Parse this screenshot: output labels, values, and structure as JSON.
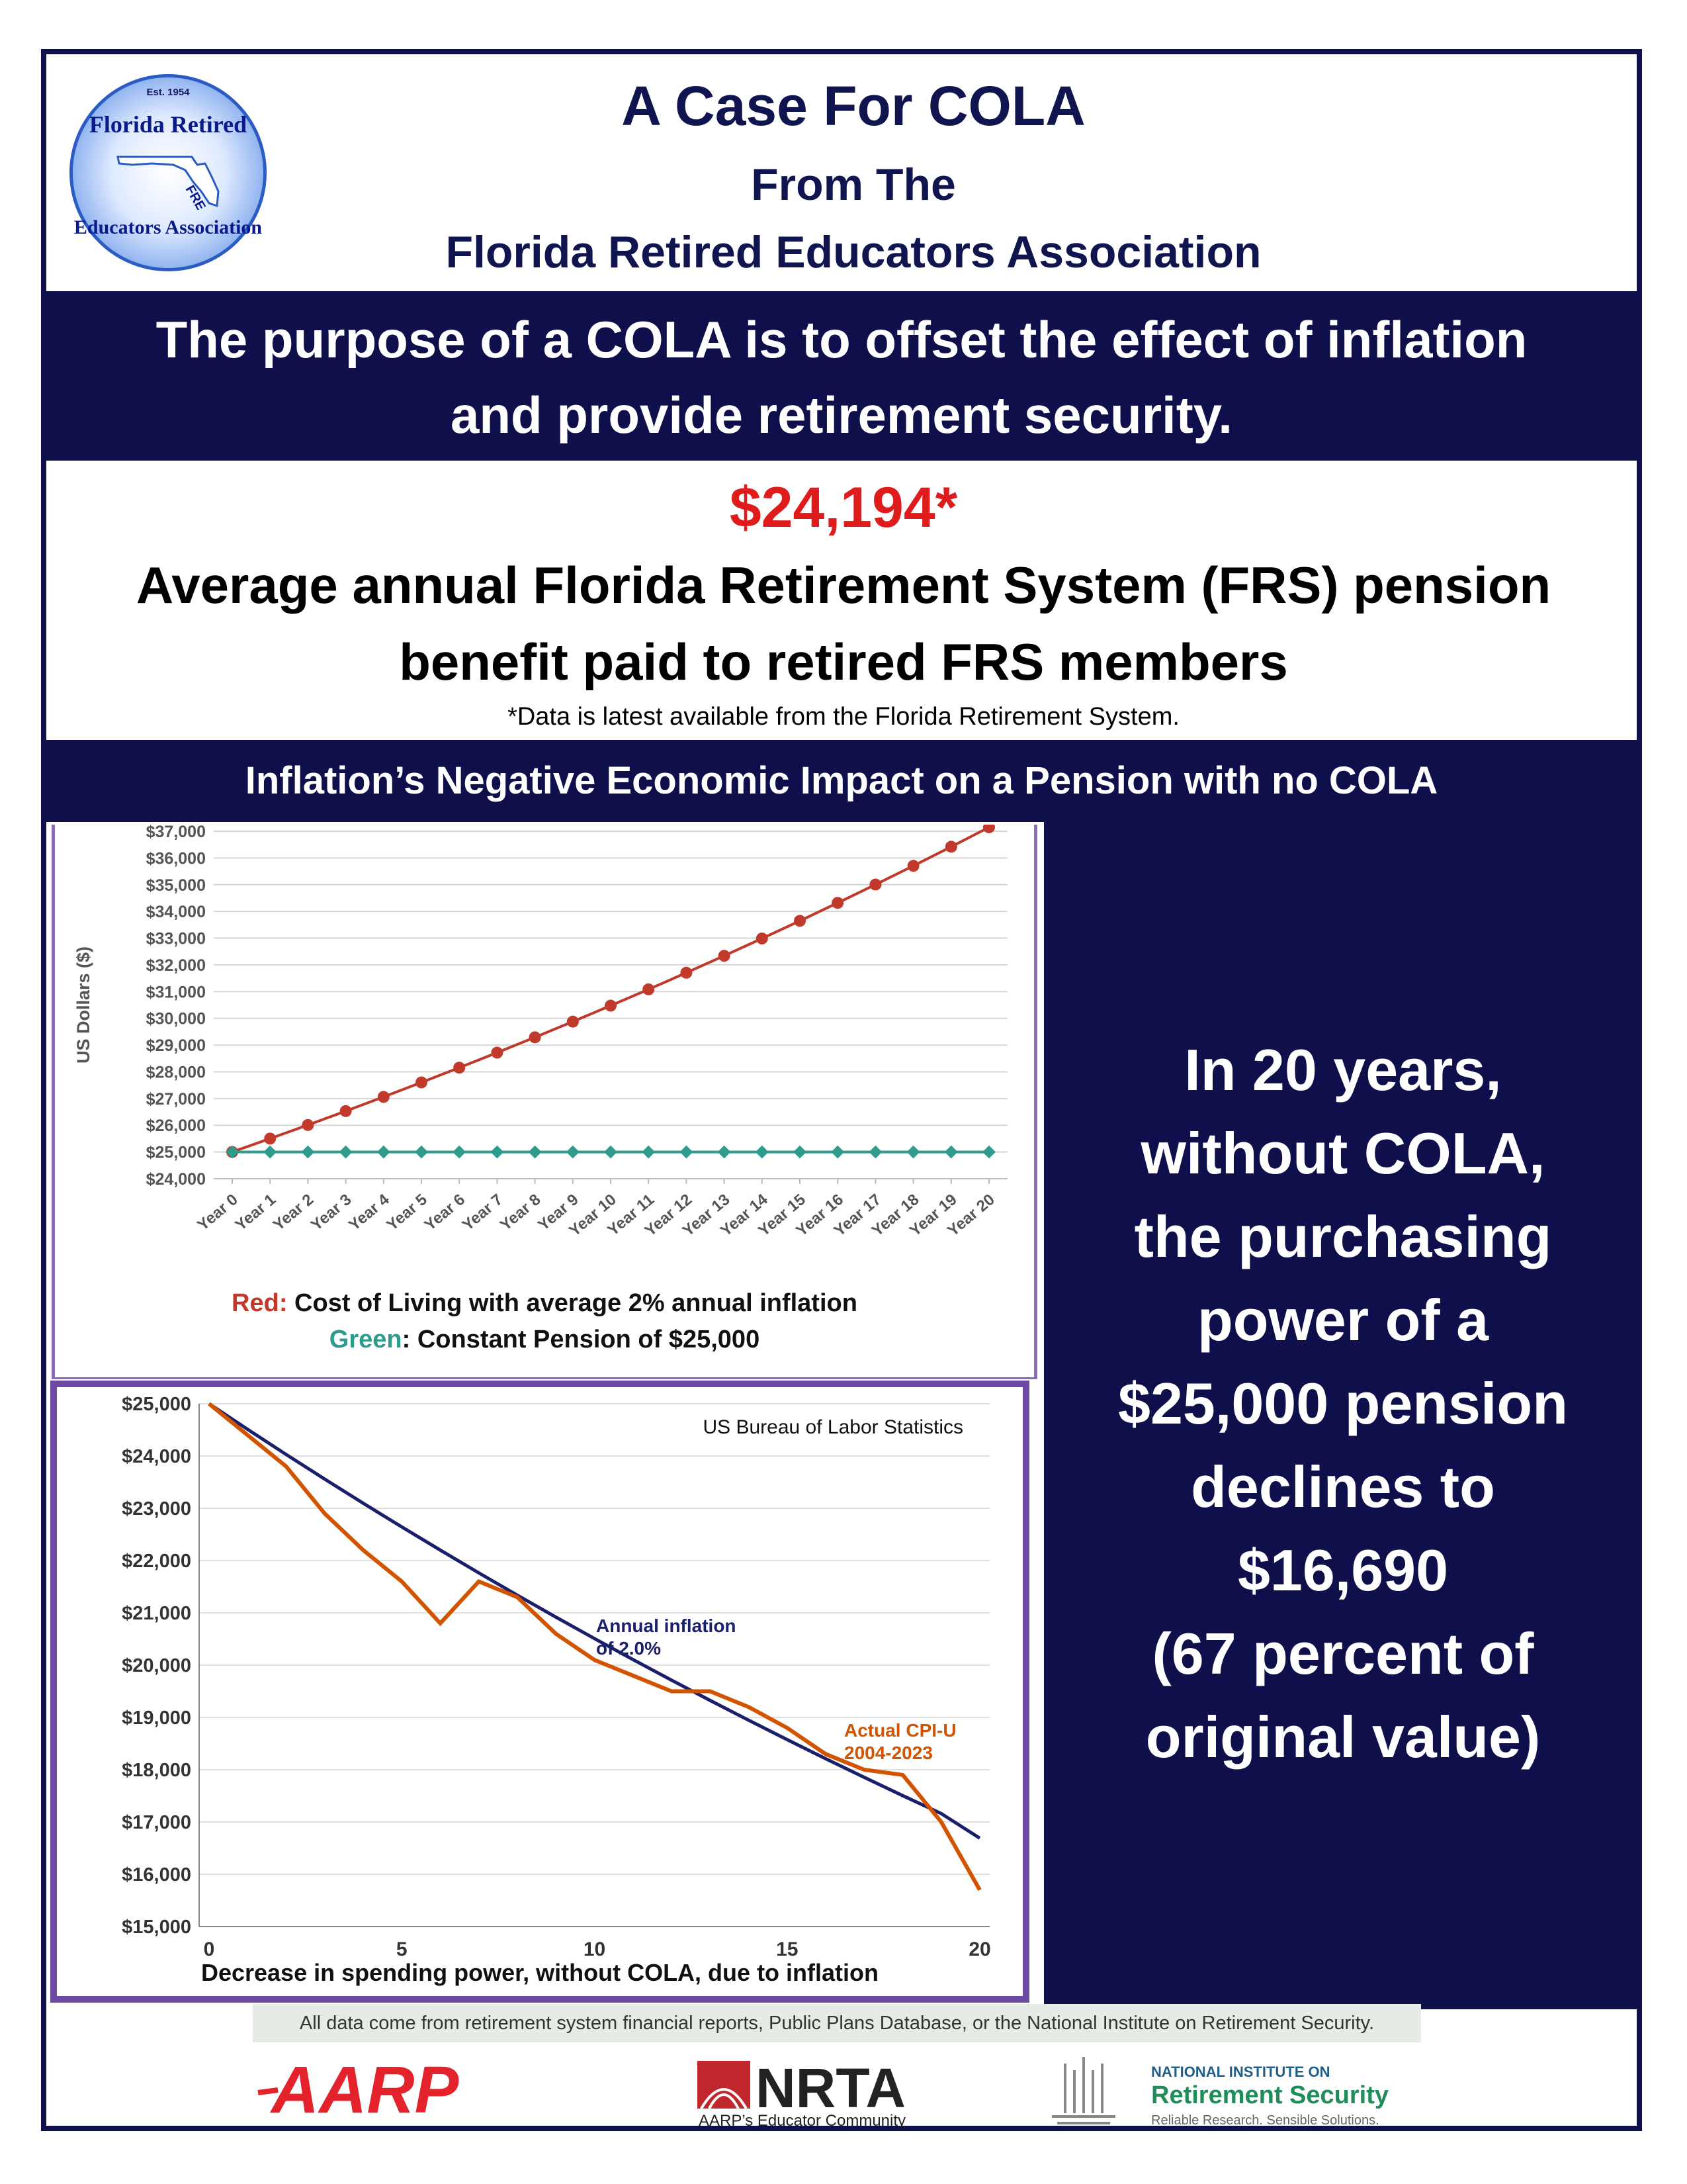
{
  "header": {
    "logo": {
      "est": "Est. 1954",
      "top_text": "Florida Retired",
      "bottom_text": "Educators Association",
      "mid_text": "FREA"
    },
    "title_line1": "A Case For COLA",
    "title_line2": "From The",
    "title_line3": "Florida Retired Educators Association"
  },
  "purpose": {
    "line1": "The purpose of a COLA is to offset the effect of inflation",
    "line2": "and provide retirement security."
  },
  "stat": {
    "value": "$24,194*",
    "line1": "Average annual Florida Retirement System (FRS)  pension",
    "line2": "benefit paid to retired FRS members",
    "note": "*Data is latest available from the Florida Retirement System."
  },
  "subheading": "Inflation’s Negative Economic Impact on a Pension with no COLA",
  "right_panel": {
    "lines": [
      "In 20 years,",
      "without COLA,",
      "the purchasing",
      "power of a",
      "$25,000 pension",
      "declines to",
      "$16,690",
      "(67 percent of",
      "original value)"
    ]
  },
  "chart_data": [
    {
      "type": "line",
      "ylabel": "US Dollars ($)",
      "ylim": [
        24000,
        37000
      ],
      "categories": [
        "Year 0",
        "Year 1",
        "Year 2",
        "Year 3",
        "Year 4",
        "Year 5",
        "Year 6",
        "Year 7",
        "Year 8",
        "Year 9",
        "Year 10",
        "Year 11",
        "Year 12",
        "Year 13",
        "Year 14",
        "Year 15",
        "Year 16",
        "Year 17",
        "Year 18",
        "Year 19",
        "Year 20"
      ],
      "y_ticks": [
        "$24,000",
        "$25,000",
        "$26,000",
        "$27,000",
        "$28,000",
        "$29,000",
        "$30,000",
        "$31,000",
        "$32,000",
        "$33,000",
        "$34,000",
        "$35,000",
        "$36,000",
        "$37,000"
      ],
      "series": [
        {
          "color": "#c0392b",
          "values": [
            25000,
            25500,
            26010,
            26530,
            27061,
            27602,
            28154,
            28717,
            29291,
            29877,
            30475,
            31084,
            31706,
            32340,
            32987,
            33647,
            34320,
            35006,
            35706,
            36420,
            37149
          ]
        },
        {
          "color": "#2e9c8c",
          "values": [
            25000,
            25000,
            25000,
            25000,
            25000,
            25000,
            25000,
            25000,
            25000,
            25000,
            25000,
            25000,
            25000,
            25000,
            25000,
            25000,
            25000,
            25000,
            25000,
            25000,
            25000
          ]
        }
      ],
      "legend": {
        "red_label": "Red:",
        "red_text": " Cost of Living with average 2% annual inflation",
        "green_label": "Green",
        "green_text": ": Constant Pension of $25,000"
      },
      "grid": true
    },
    {
      "type": "line",
      "ylim": [
        15000,
        25000
      ],
      "xlim": [
        0,
        20
      ],
      "x_ticks": [
        "0",
        "5",
        "10",
        "15",
        "20"
      ],
      "y_ticks": [
        "$15,000",
        "$16,000",
        "$17,000",
        "$18,000",
        "$19,000",
        "$20,000",
        "$21,000",
        "$22,000",
        "$23,000",
        "$24,000",
        "$25,000"
      ],
      "source": "US Bureau of Labor Statistics",
      "caption": "Decrease in spending power, without COLA, due to inflation",
      "series": [
        {
          "name": "Annual inflation of 2.0%",
          "label_lines": [
            "Annual inflation",
            "of 2.0%"
          ],
          "color": "#1a1f6b",
          "x": [
            0,
            1,
            2,
            3,
            4,
            5,
            6,
            7,
            8,
            9,
            10,
            11,
            12,
            13,
            14,
            15,
            16,
            17,
            18,
            19,
            20
          ],
          "values": [
            25000,
            24510,
            24029,
            23558,
            23096,
            22644,
            22200,
            21764,
            21337,
            20919,
            20509,
            20107,
            19713,
            19326,
            18947,
            18576,
            18211,
            17854,
            17504,
            17161,
            16690
          ]
        },
        {
          "name": "Actual CPI-U 2004-2023",
          "label_lines": [
            "Actual CPI-U",
            "2004-2023"
          ],
          "color": "#d35400",
          "x": [
            0,
            1,
            2,
            3,
            4,
            5,
            6,
            7,
            8,
            9,
            10,
            11,
            12,
            13,
            14,
            15,
            16,
            17,
            18,
            19,
            20
          ],
          "values": [
            25000,
            24400,
            23800,
            22900,
            22200,
            21600,
            20800,
            21600,
            21300,
            20600,
            20100,
            19800,
            19500,
            19500,
            19200,
            18800,
            18300,
            18000,
            17900,
            17000,
            15700
          ]
        }
      ],
      "grid": true
    }
  ],
  "footer": {
    "note": "All data come from retirement system financial reports, Public Plans Database, or the National Institute on Retirement Security.",
    "aarp": "AARP",
    "nrta": "NRTA",
    "nrta_tag": "AARP’s Educator Community",
    "nirs_top": "NATIONAL INSTITUTE ON",
    "nirs_mid": "Retirement Security",
    "nirs_tag": "Reliable Research. Sensible Solutions."
  },
  "colors": {
    "navy": "#0e0f4b",
    "red": "#e01b1b",
    "purple_border": "#6f4aa5"
  }
}
